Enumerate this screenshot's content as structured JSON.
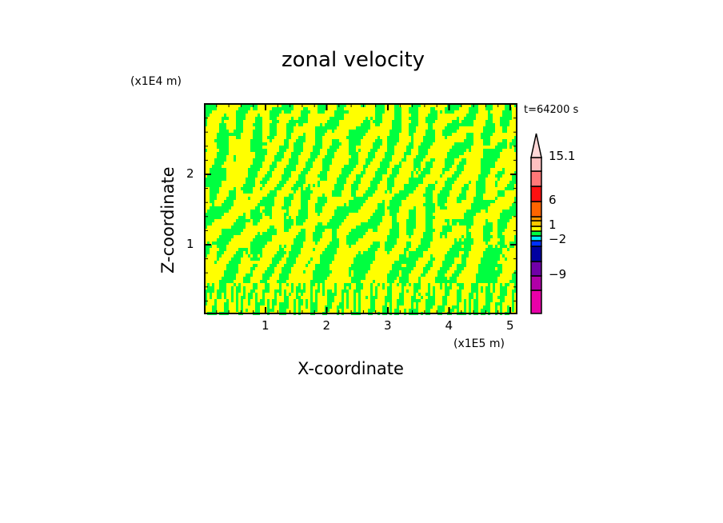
{
  "chart_data": {
    "type": "heatmap",
    "title": "zonal velocity",
    "xlabel": "X-coordinate",
    "ylabel": "Z-coordinate",
    "x_unit": "(x1E5 m)",
    "y_unit": "(x1E4 m)",
    "time_label": "t=64200 s",
    "xlim": [
      0,
      5.1
    ],
    "ylim": [
      0,
      2.98
    ],
    "x_ticks": [
      "1",
      "2",
      "3",
      "4",
      "5"
    ],
    "y_ticks": [
      "1",
      "2"
    ],
    "dominant_field_colors": [
      "#ffff00",
      "#00ff40"
    ],
    "colorbar": {
      "labels": [
        {
          "text": "15.1",
          "value": 15.1
        },
        {
          "text": "6",
          "value": 6
        },
        {
          "text": "1",
          "value": 1
        },
        {
          "text": "−2",
          "value": -2
        },
        {
          "text": "−9",
          "value": -9
        }
      ],
      "colors": [
        "#e800a8",
        "#b000a8",
        "#7000a8",
        "#0000a0",
        "#0030ff",
        "#00e8ff",
        "#00ff40",
        "#ffff00",
        "#ffc800",
        "#ff9600",
        "#ff6400",
        "#ff1010",
        "#ff7878",
        "#ffc0c0",
        "#ffd8d8"
      ]
    }
  }
}
